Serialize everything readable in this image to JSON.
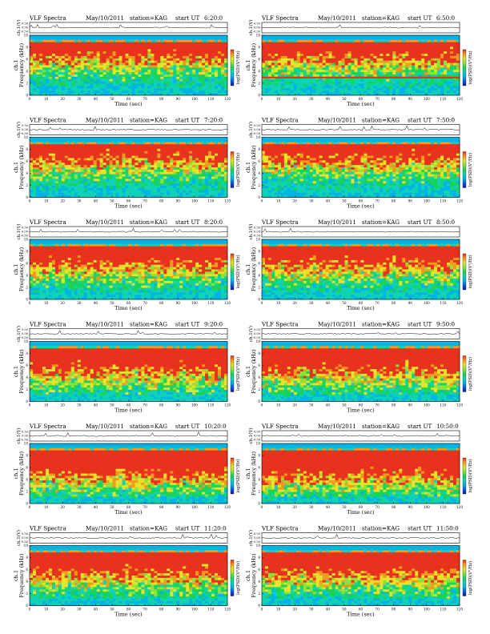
{
  "page": {
    "background": "#ffffff"
  },
  "colorscale": [
    "#1a1aa8",
    "#0a5ad8",
    "#00b4e6",
    "#10d2b4",
    "#19d35a",
    "#8ee23a",
    "#e6e32a",
    "#f39a1e",
    "#e8321e"
  ],
  "labels": {
    "header_left": "VLF Spectra",
    "station": "station=KAG",
    "start": "start  UT",
    "xlabel": "Time  (sec)",
    "ylabel_ch": "ch.1",
    "ylabel_freq": "Frequency  (kHz)",
    "top_ylabel": "ch.1(V)",
    "colorbar_label": "log(PSD)(V²/Hz)",
    "top_ticks": [
      "0.50",
      "0.00",
      "-0.50"
    ]
  },
  "chart_data": [
    {
      "type": "heatmap",
      "date": "May/10/2011",
      "start_time": "6:20:0",
      "band": "0.5",
      "x_range": [
        0,
        120
      ],
      "y_range": [
        0,
        10
      ],
      "xticks": [
        0,
        10,
        20,
        30,
        40,
        50,
        60,
        70,
        80,
        90,
        100,
        110,
        120
      ],
      "yticks": [
        0,
        2,
        4,
        6,
        8,
        10
      ]
    },
    {
      "type": "heatmap",
      "date": "May/10/2011",
      "start_time": "6:50:0",
      "band": "0.5",
      "feature": "line near 3 kHz",
      "x_range": [
        0,
        120
      ],
      "y_range": [
        0,
        10
      ],
      "xticks": [
        0,
        10,
        20,
        30,
        40,
        50,
        60,
        70,
        80,
        90,
        100,
        110,
        120
      ],
      "yticks": [
        0,
        2,
        4,
        6,
        8,
        10
      ]
    },
    {
      "type": "heatmap",
      "date": "May/10/2011",
      "start_time": "7:20:0",
      "band": "0.5",
      "x_range": [
        0,
        120
      ],
      "y_range": [
        0,
        10
      ],
      "xticks": [
        0,
        10,
        20,
        30,
        40,
        50,
        60,
        70,
        80,
        90,
        100,
        110,
        120
      ],
      "yticks": [
        0,
        2,
        4,
        6,
        8,
        10
      ]
    },
    {
      "type": "heatmap",
      "date": "May/10/2011",
      "start_time": "7:50:0",
      "band": "0.5",
      "x_range": [
        0,
        120
      ],
      "y_range": [
        0,
        10
      ],
      "xticks": [
        0,
        10,
        20,
        30,
        40,
        50,
        60,
        70,
        80,
        90,
        100,
        110,
        120
      ],
      "yticks": [
        0,
        2,
        4,
        6,
        8,
        10
      ]
    },
    {
      "type": "heatmap",
      "date": "May/10/2011",
      "start_time": "8:20:0",
      "band": "0.55",
      "x_range": [
        0,
        120
      ],
      "y_range": [
        0,
        10
      ],
      "xticks": [
        0,
        10,
        20,
        30,
        40,
        50,
        60,
        70,
        80,
        90,
        100,
        110,
        120
      ],
      "yticks": [
        0,
        2,
        4,
        6,
        8,
        10
      ]
    },
    {
      "type": "heatmap",
      "date": "May/10/2011",
      "start_time": "8:50:0",
      "band": "0.55",
      "x_range": [
        0,
        120
      ],
      "y_range": [
        0,
        10
      ],
      "xticks": [
        0,
        10,
        20,
        30,
        40,
        50,
        60,
        70,
        80,
        90,
        100,
        110,
        120
      ],
      "yticks": [
        0,
        2,
        4,
        6,
        8,
        10
      ]
    },
    {
      "type": "heatmap",
      "date": "May/10/2011",
      "start_time": "9:20:0",
      "band": "0.62",
      "x_range": [
        0,
        120
      ],
      "y_range": [
        0,
        10
      ],
      "xticks": [
        0,
        10,
        20,
        30,
        40,
        50,
        60,
        70,
        80,
        90,
        100,
        110,
        120
      ],
      "yticks": [
        0,
        2,
        4,
        6,
        8,
        10
      ]
    },
    {
      "type": "heatmap",
      "date": "May/10/2011",
      "start_time": "9:50:0",
      "band": "0.62",
      "x_range": [
        0,
        120
      ],
      "y_range": [
        0,
        10
      ],
      "xticks": [
        0,
        10,
        20,
        30,
        40,
        50,
        60,
        70,
        80,
        90,
        100,
        110,
        120
      ],
      "yticks": [
        0,
        2,
        4,
        6,
        8,
        10
      ]
    },
    {
      "type": "heatmap",
      "date": "May/10/2011",
      "start_time": "10:20:0",
      "band": "0.65",
      "x_range": [
        0,
        120
      ],
      "y_range": [
        0,
        10
      ],
      "xticks": [
        0,
        10,
        20,
        30,
        40,
        50,
        60,
        70,
        80,
        90,
        100,
        110,
        120
      ],
      "yticks": [
        0,
        2,
        4,
        6,
        8,
        10
      ]
    },
    {
      "type": "heatmap",
      "date": "May/10/2011",
      "start_time": "10:50:0",
      "band": "0.68",
      "x_range": [
        0,
        120
      ],
      "y_range": [
        0,
        10
      ],
      "xticks": [
        0,
        10,
        20,
        30,
        40,
        50,
        60,
        70,
        80,
        90,
        100,
        110,
        120
      ],
      "yticks": [
        0,
        2,
        4,
        6,
        8,
        10
      ]
    },
    {
      "type": "heatmap",
      "date": "May/10/2011",
      "start_time": "11:20:0",
      "band": "0.6",
      "x_range": [
        0,
        120
      ],
      "y_range": [
        0,
        10
      ],
      "xticks": [
        0,
        10,
        20,
        30,
        40,
        50,
        60,
        70,
        80,
        90,
        100,
        110,
        120
      ],
      "yticks": [
        0,
        2,
        4,
        6,
        8,
        10
      ]
    },
    {
      "type": "heatmap",
      "date": "May/10/2011",
      "start_time": "11:50:0",
      "band": "0.6",
      "x_range": [
        0,
        120
      ],
      "y_range": [
        0,
        10
      ],
      "xticks": [
        0,
        10,
        20,
        30,
        40,
        50,
        60,
        70,
        80,
        90,
        100,
        110,
        120
      ],
      "yticks": [
        0,
        2,
        4,
        6,
        8,
        10
      ]
    }
  ]
}
